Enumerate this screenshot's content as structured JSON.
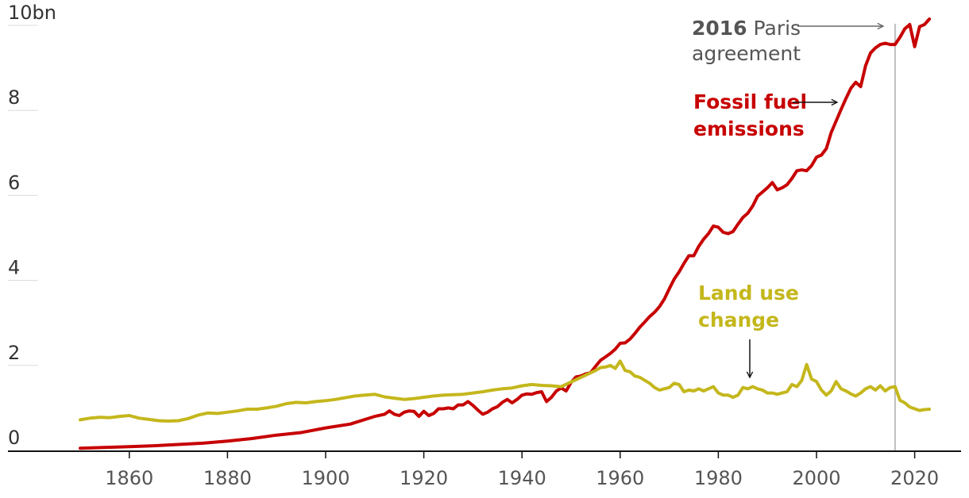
{
  "chart_data": {
    "type": "line",
    "title": "",
    "xlabel": "",
    "ylabel": "",
    "xlim": [
      1840,
      2030
    ],
    "ylim": [
      0,
      10
    ],
    "y_ticks": [
      0,
      2,
      4,
      6,
      8,
      10
    ],
    "y_tick_labels": [
      "0",
      "2",
      "4",
      "6",
      "8",
      "10bn"
    ],
    "x_ticks": [
      1860,
      1880,
      1900,
      1920,
      1940,
      1960,
      1980,
      2000,
      2020
    ],
    "x_tick_labels": [
      "1860",
      "1880",
      "1900",
      "1920",
      "1940",
      "1960",
      "1980",
      "2000",
      "2020"
    ],
    "grid": "horizontal",
    "colors": {
      "fossil": "#c70000",
      "land": "#c4b71c",
      "axis": "#121212",
      "grid": "#dcdcdc",
      "marker": "#bdbdbd"
    },
    "series": [
      {
        "name": "Fossil fuel emissions",
        "points": [
          [
            1850,
            0.05
          ],
          [
            1855,
            0.07
          ],
          [
            1860,
            0.09
          ],
          [
            1865,
            0.11
          ],
          [
            1870,
            0.14
          ],
          [
            1875,
            0.17
          ],
          [
            1880,
            0.22
          ],
          [
            1885,
            0.28
          ],
          [
            1890,
            0.36
          ],
          [
            1895,
            0.42
          ],
          [
            1900,
            0.53
          ],
          [
            1905,
            0.62
          ],
          [
            1910,
            0.8
          ],
          [
            1912,
            0.85
          ],
          [
            1913,
            0.93
          ],
          [
            1914,
            0.85
          ],
          [
            1915,
            0.82
          ],
          [
            1916,
            0.9
          ],
          [
            1917,
            0.93
          ],
          [
            1918,
            0.92
          ],
          [
            1919,
            0.8
          ],
          [
            1920,
            0.92
          ],
          [
            1921,
            0.82
          ],
          [
            1922,
            0.87
          ],
          [
            1923,
            0.98
          ],
          [
            1924,
            0.98
          ],
          [
            1925,
            1.0
          ],
          [
            1926,
            0.98
          ],
          [
            1927,
            1.07
          ],
          [
            1928,
            1.07
          ],
          [
            1929,
            1.15
          ],
          [
            1930,
            1.06
          ],
          [
            1931,
            0.95
          ],
          [
            1932,
            0.85
          ],
          [
            1933,
            0.9
          ],
          [
            1934,
            0.98
          ],
          [
            1935,
            1.03
          ],
          [
            1936,
            1.13
          ],
          [
            1937,
            1.2
          ],
          [
            1938,
            1.12
          ],
          [
            1939,
            1.2
          ],
          [
            1940,
            1.3
          ],
          [
            1941,
            1.33
          ],
          [
            1942,
            1.32
          ],
          [
            1943,
            1.36
          ],
          [
            1944,
            1.38
          ],
          [
            1945,
            1.15
          ],
          [
            1946,
            1.25
          ],
          [
            1947,
            1.4
          ],
          [
            1948,
            1.47
          ],
          [
            1949,
            1.4
          ],
          [
            1950,
            1.6
          ],
          [
            1951,
            1.73
          ],
          [
            1952,
            1.75
          ],
          [
            1953,
            1.8
          ],
          [
            1954,
            1.83
          ],
          [
            1955,
            1.98
          ],
          [
            1956,
            2.12
          ],
          [
            1957,
            2.2
          ],
          [
            1958,
            2.28
          ],
          [
            1959,
            2.38
          ],
          [
            1960,
            2.52
          ],
          [
            1961,
            2.53
          ],
          [
            1962,
            2.62
          ],
          [
            1963,
            2.75
          ],
          [
            1964,
            2.9
          ],
          [
            1965,
            3.02
          ],
          [
            1966,
            3.15
          ],
          [
            1967,
            3.25
          ],
          [
            1968,
            3.38
          ],
          [
            1969,
            3.56
          ],
          [
            1970,
            3.8
          ],
          [
            1971,
            4.03
          ],
          [
            1972,
            4.2
          ],
          [
            1973,
            4.4
          ],
          [
            1974,
            4.58
          ],
          [
            1975,
            4.58
          ],
          [
            1976,
            4.8
          ],
          [
            1977,
            4.97
          ],
          [
            1978,
            5.1
          ],
          [
            1979,
            5.28
          ],
          [
            1980,
            5.25
          ],
          [
            1981,
            5.13
          ],
          [
            1982,
            5.1
          ],
          [
            1983,
            5.15
          ],
          [
            1984,
            5.32
          ],
          [
            1985,
            5.48
          ],
          [
            1986,
            5.58
          ],
          [
            1987,
            5.75
          ],
          [
            1988,
            5.98
          ],
          [
            1989,
            6.08
          ],
          [
            1990,
            6.18
          ],
          [
            1991,
            6.3
          ],
          [
            1992,
            6.13
          ],
          [
            1993,
            6.18
          ],
          [
            1994,
            6.25
          ],
          [
            1995,
            6.4
          ],
          [
            1996,
            6.58
          ],
          [
            1997,
            6.6
          ],
          [
            1998,
            6.58
          ],
          [
            1999,
            6.7
          ],
          [
            2000,
            6.9
          ],
          [
            2001,
            6.95
          ],
          [
            2002,
            7.1
          ],
          [
            2003,
            7.48
          ],
          [
            2004,
            7.75
          ],
          [
            2005,
            8.02
          ],
          [
            2006,
            8.28
          ],
          [
            2007,
            8.52
          ],
          [
            2008,
            8.66
          ],
          [
            2009,
            8.56
          ],
          [
            2010,
            9.05
          ],
          [
            2011,
            9.35
          ],
          [
            2012,
            9.47
          ],
          [
            2013,
            9.55
          ],
          [
            2014,
            9.58
          ],
          [
            2015,
            9.55
          ],
          [
            2016,
            9.55
          ],
          [
            2017,
            9.72
          ],
          [
            2018,
            9.92
          ],
          [
            2019,
            10.02
          ],
          [
            2020,
            9.5
          ],
          [
            2021,
            9.97
          ],
          [
            2022,
            10.02
          ],
          [
            2023,
            10.15
          ]
        ]
      },
      {
        "name": "Land use change",
        "points": [
          [
            1850,
            0.72
          ],
          [
            1852,
            0.76
          ],
          [
            1854,
            0.78
          ],
          [
            1856,
            0.77
          ],
          [
            1858,
            0.8
          ],
          [
            1860,
            0.82
          ],
          [
            1862,
            0.76
          ],
          [
            1864,
            0.73
          ],
          [
            1866,
            0.7
          ],
          [
            1868,
            0.69
          ],
          [
            1870,
            0.7
          ],
          [
            1872,
            0.75
          ],
          [
            1874,
            0.83
          ],
          [
            1876,
            0.88
          ],
          [
            1878,
            0.87
          ],
          [
            1880,
            0.9
          ],
          [
            1882,
            0.93
          ],
          [
            1884,
            0.97
          ],
          [
            1886,
            0.97
          ],
          [
            1888,
            1.0
          ],
          [
            1890,
            1.04
          ],
          [
            1892,
            1.1
          ],
          [
            1894,
            1.13
          ],
          [
            1896,
            1.12
          ],
          [
            1898,
            1.15
          ],
          [
            1900,
            1.17
          ],
          [
            1902,
            1.2
          ],
          [
            1904,
            1.24
          ],
          [
            1906,
            1.28
          ],
          [
            1908,
            1.3
          ],
          [
            1910,
            1.32
          ],
          [
            1912,
            1.26
          ],
          [
            1914,
            1.23
          ],
          [
            1916,
            1.2
          ],
          [
            1918,
            1.22
          ],
          [
            1920,
            1.25
          ],
          [
            1922,
            1.28
          ],
          [
            1924,
            1.3
          ],
          [
            1926,
            1.31
          ],
          [
            1928,
            1.32
          ],
          [
            1930,
            1.35
          ],
          [
            1932,
            1.38
          ],
          [
            1934,
            1.42
          ],
          [
            1936,
            1.45
          ],
          [
            1938,
            1.47
          ],
          [
            1940,
            1.52
          ],
          [
            1942,
            1.55
          ],
          [
            1944,
            1.53
          ],
          [
            1946,
            1.52
          ],
          [
            1948,
            1.5
          ],
          [
            1955,
            1.88
          ],
          [
            1956,
            1.95
          ],
          [
            1957,
            1.96
          ],
          [
            1958,
            2.0
          ],
          [
            1959,
            1.93
          ],
          [
            1960,
            2.1
          ],
          [
            1961,
            1.88
          ],
          [
            1962,
            1.85
          ],
          [
            1963,
            1.75
          ],
          [
            1964,
            1.72
          ],
          [
            1965,
            1.65
          ],
          [
            1966,
            1.58
          ],
          [
            1967,
            1.48
          ],
          [
            1968,
            1.42
          ],
          [
            1969,
            1.45
          ],
          [
            1970,
            1.48
          ],
          [
            1971,
            1.58
          ],
          [
            1972,
            1.55
          ],
          [
            1973,
            1.38
          ],
          [
            1974,
            1.42
          ],
          [
            1975,
            1.4
          ],
          [
            1976,
            1.45
          ],
          [
            1977,
            1.4
          ],
          [
            1978,
            1.45
          ],
          [
            1979,
            1.5
          ],
          [
            1980,
            1.35
          ],
          [
            1981,
            1.3
          ],
          [
            1982,
            1.3
          ],
          [
            1983,
            1.25
          ],
          [
            1984,
            1.3
          ],
          [
            1985,
            1.48
          ],
          [
            1986,
            1.45
          ],
          [
            1987,
            1.5
          ],
          [
            1988,
            1.45
          ],
          [
            1989,
            1.42
          ],
          [
            1990,
            1.35
          ],
          [
            1991,
            1.35
          ],
          [
            1992,
            1.32
          ],
          [
            1993,
            1.35
          ],
          [
            1994,
            1.38
          ],
          [
            1995,
            1.55
          ],
          [
            1996,
            1.5
          ],
          [
            1997,
            1.65
          ],
          [
            1998,
            2.02
          ],
          [
            1999,
            1.68
          ],
          [
            2000,
            1.62
          ],
          [
            2001,
            1.42
          ],
          [
            2002,
            1.3
          ],
          [
            2003,
            1.4
          ],
          [
            2004,
            1.62
          ],
          [
            2005,
            1.45
          ],
          [
            2006,
            1.4
          ],
          [
            2007,
            1.33
          ],
          [
            2008,
            1.28
          ],
          [
            2009,
            1.35
          ],
          [
            2010,
            1.45
          ],
          [
            2011,
            1.5
          ],
          [
            2012,
            1.42
          ],
          [
            2013,
            1.52
          ],
          [
            2014,
            1.4
          ],
          [
            2015,
            1.48
          ],
          [
            2016,
            1.5
          ],
          [
            2017,
            1.18
          ],
          [
            2018,
            1.12
          ],
          [
            2019,
            1.02
          ],
          [
            2020,
            0.98
          ],
          [
            2021,
            0.94
          ],
          [
            2022,
            0.96
          ],
          [
            2023,
            0.97
          ]
        ]
      }
    ],
    "annotations": [
      {
        "id": "paris",
        "x": 2016,
        "lines": [
          [
            [
              "2016",
              true
            ],
            [
              " Paris",
              false
            ]
          ],
          [
            [
              "agreement",
              false
            ]
          ]
        ],
        "color": "#555555"
      },
      {
        "id": "fossil",
        "lines": [
          [
            [
              "Fossil fuel",
              true
            ]
          ],
          [
            [
              "emissions",
              true
            ]
          ]
        ],
        "color": "#c70000"
      },
      {
        "id": "land",
        "lines": [
          [
            [
              "Land use",
              true
            ]
          ],
          [
            [
              "change",
              true
            ]
          ]
        ],
        "color": "#c4b71c"
      }
    ]
  }
}
